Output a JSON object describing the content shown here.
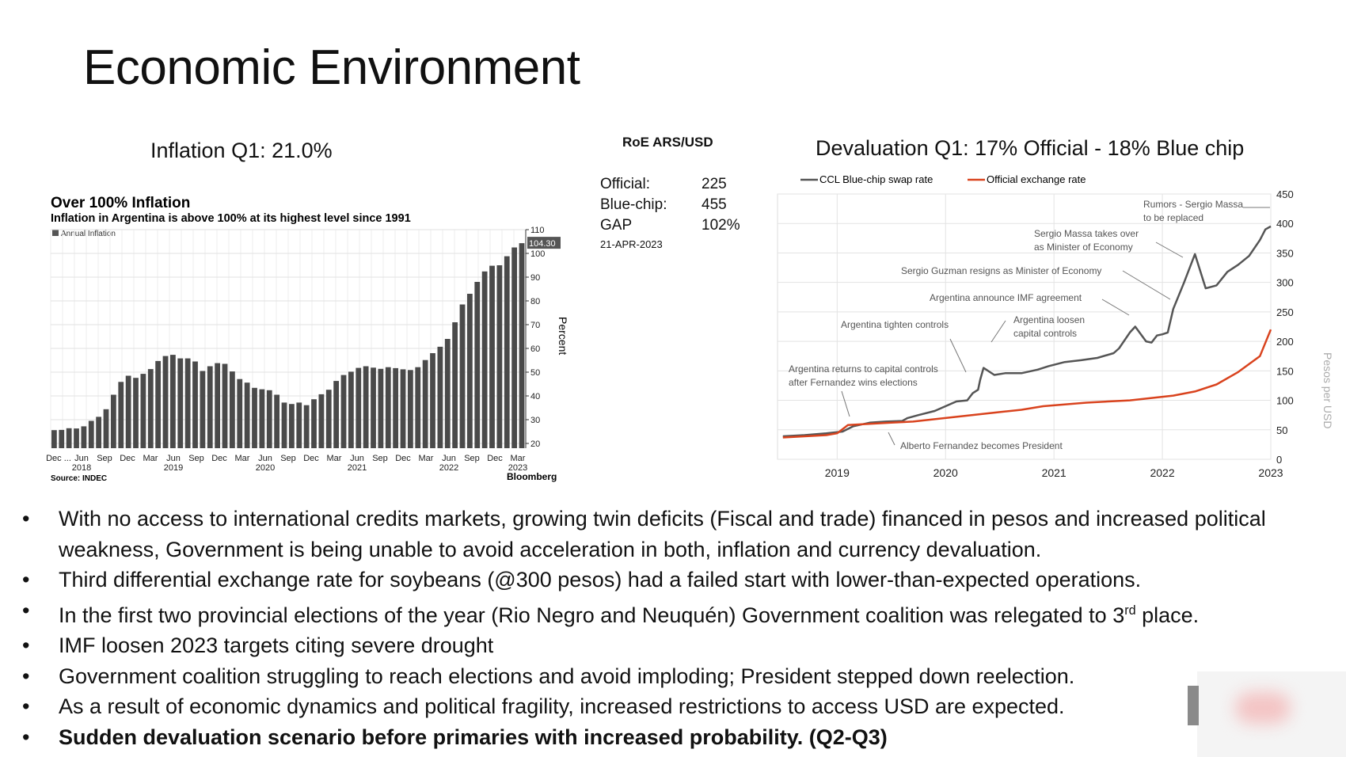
{
  "title": "Economic Environment",
  "inflation_heading": "Inflation Q1: 21.0%",
  "devaluation_heading": "Devaluation Q1: 17% Official - 18% Blue chip",
  "roe": {
    "title": "RoE ARS/USD",
    "rows": [
      {
        "label": "Official:",
        "value": "225"
      },
      {
        "label": "Blue-chip:",
        "value": "455"
      },
      {
        "label": "GAP",
        "value": "102%"
      }
    ],
    "date": "21-APR-2023"
  },
  "chart_data": [
    {
      "type": "bar",
      "title": "Over 100% Inflation",
      "subtitle": "Inflation in Argentina is above 100% at its highest level since 1991",
      "legend": "Annual Inflation",
      "ylabel": "Percent",
      "ylim": [
        18,
        110
      ],
      "yticks": [
        20,
        30,
        40,
        50,
        60,
        70,
        80,
        90,
        100,
        110
      ],
      "last_value_label": "104.30",
      "source": "Source: INDEC",
      "credit": "Bloomberg",
      "tick_labels": [
        "Dec ...",
        "Jun",
        "Sep",
        "Dec",
        "Mar",
        "Jun",
        "Sep",
        "Dec",
        "Mar",
        "Jun",
        "Sep",
        "Dec",
        "Mar",
        "Jun",
        "Sep",
        "Dec",
        "Mar",
        "Jun",
        "Sep",
        "Dec",
        "Mar"
      ],
      "year_labels": [
        "2018",
        "2019",
        "2020",
        "2021",
        "2022",
        "2023"
      ],
      "values": [
        25.6,
        25.7,
        26.4,
        26.3,
        27.2,
        29.5,
        31.2,
        34.4,
        40.5,
        45.9,
        48.5,
        47.6,
        49.3,
        51.3,
        54.7,
        56.8,
        57.3,
        55.8,
        55.8,
        54.5,
        50.5,
        52.5,
        53.8,
        53.5,
        50.3,
        47.1,
        45.6,
        43.4,
        42.8,
        42.4,
        40.5,
        37.2,
        36.6,
        37.2,
        36.1,
        38.6,
        40.7,
        42.6,
        46.3,
        48.8,
        50.2,
        51.8,
        52.5,
        51.9,
        51.4,
        52.1,
        51.7,
        51.2,
        50.9,
        52.1,
        55.1,
        58.0,
        60.7,
        64.0,
        71.0,
        78.5,
        83.0,
        88.0,
        92.4,
        94.8,
        95.0,
        98.8,
        102.5,
        104.3
      ]
    },
    {
      "type": "line",
      "legend": [
        "CCL Blue-chip swap rate",
        "Official exchange rate"
      ],
      "ylabel": "Pesos per USD",
      "ylim": [
        0,
        450
      ],
      "yticks": [
        0,
        50,
        100,
        150,
        200,
        250,
        300,
        350,
        400,
        450
      ],
      "x_labels": [
        "2019",
        "2020",
        "2021",
        "2022",
        "2023"
      ],
      "series": [
        {
          "name": "CCL Blue-chip swap rate",
          "color": "#555555",
          "x": [
            2018.5,
            2018.7,
            2018.9,
            2019.05,
            2019.15,
            2019.3,
            2019.45,
            2019.6,
            2019.65,
            2019.75,
            2019.9,
            2020.0,
            2020.1,
            2020.2,
            2020.25,
            2020.3,
            2020.32,
            2020.35,
            2020.45,
            2020.55,
            2020.7,
            2020.85,
            2020.95,
            2021.1,
            2021.25,
            2021.4,
            2021.55,
            2021.6,
            2021.7,
            2021.75,
            2021.85,
            2021.9,
            2021.95,
            2022.0,
            2022.05,
            2022.1,
            2022.2,
            2022.3,
            2022.4,
            2022.5,
            2022.6,
            2022.7,
            2022.8,
            2022.9,
            2022.95,
            2023.0
          ],
          "y": [
            39,
            41,
            44,
            47,
            56,
            62,
            64,
            65,
            70,
            75,
            82,
            90,
            98,
            100,
            112,
            118,
            135,
            155,
            143,
            146,
            146,
            152,
            158,
            165,
            168,
            172,
            180,
            188,
            215,
            225,
            200,
            198,
            210,
            212,
            215,
            255,
            300,
            348,
            290,
            295,
            318,
            330,
            345,
            372,
            390,
            395
          ]
        },
        {
          "name": "Official exchange rate",
          "color": "#d9431e",
          "x": [
            2018.5,
            2018.7,
            2018.9,
            2019.0,
            2019.1,
            2019.3,
            2019.5,
            2019.7,
            2019.9,
            2020.1,
            2020.3,
            2020.5,
            2020.7,
            2020.9,
            2021.1,
            2021.3,
            2021.5,
            2021.7,
            2021.9,
            2022.1,
            2022.3,
            2022.5,
            2022.7,
            2022.9,
            2023.0
          ],
          "y": [
            37,
            39,
            41,
            44,
            58,
            60,
            62,
            64,
            68,
            72,
            76,
            80,
            84,
            90,
            93,
            96,
            98,
            100,
            104,
            108,
            115,
            127,
            148,
            175,
            220
          ]
        }
      ],
      "annotations": [
        "Rumors - Sergio Massa to be replaced",
        "Sergio Massa takes over as Minister of Economy",
        "Sergio Guzman resigns as Minister of Economy",
        "Argentina announce IMF agreement",
        "Argentina tighten controls",
        "Argentina loosen capital controls",
        "Argentina returns to capital controls after Fernandez wins elections",
        "Alberto Fernandez becomes President"
      ]
    }
  ],
  "bullets": [
    "With no access to international credits markets, growing twin deficits (Fiscal and trade) financed in pesos and increased political weakness, Government is being unable to avoid acceleration in both, inflation and currency devaluation.",
    "Third differential exchange rate for soybeans (@300 pesos) had a failed start with lower-than-expected operations.",
    "In the first two provincial elections of the year (Rio Negro and Neuquén) Government coalition was relegated to 3rd place.",
    "IMF loosen 2023 targets citing severe drought",
    "Government coalition struggling to reach elections and avoid imploding; President stepped down reelection.",
    "As a result of economic dynamics and political fragility, increased restrictions to access USD are expected.",
    "Sudden devaluation scenario before primaries with increased probability. (Q2-Q3)"
  ],
  "bullet_symbol": "•"
}
